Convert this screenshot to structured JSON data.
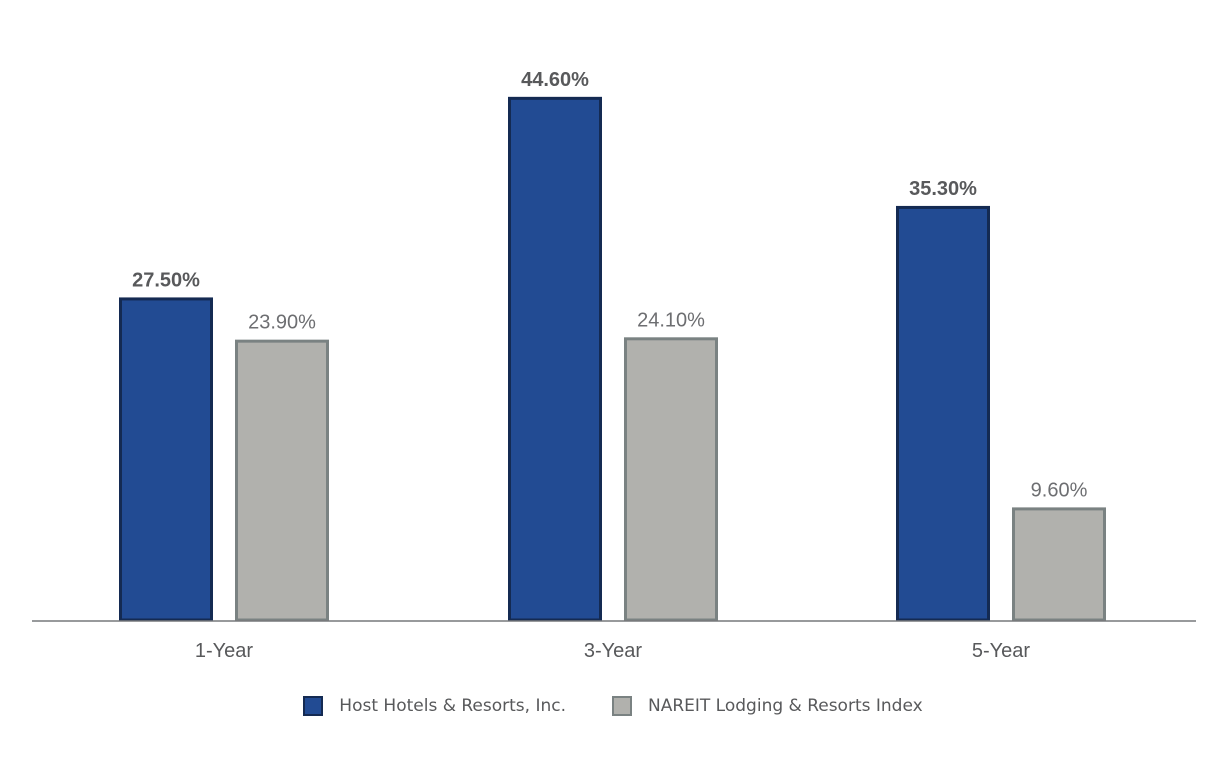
{
  "chart_data": {
    "type": "bar",
    "categories": [
      "1-Year",
      "3-Year",
      "5-Year"
    ],
    "series": [
      {
        "name": "Host Hotels & Resorts, Inc.",
        "values": [
          27.5,
          44.6,
          35.3
        ],
        "labels": [
          "27.50%",
          "44.60%",
          "35.30%"
        ],
        "color": "#224b93",
        "border": "#142a52"
      },
      {
        "name": "NAREIT Lodging & Resorts Index",
        "values": [
          23.9,
          24.1,
          9.6
        ],
        "labels": [
          "23.90%",
          "24.10%",
          "9.60%"
        ],
        "color": "#b1b1ad",
        "border": "#7a8282"
      }
    ],
    "ylim": [
      0,
      50
    ],
    "grid": false,
    "legend_position": "bottom"
  }
}
